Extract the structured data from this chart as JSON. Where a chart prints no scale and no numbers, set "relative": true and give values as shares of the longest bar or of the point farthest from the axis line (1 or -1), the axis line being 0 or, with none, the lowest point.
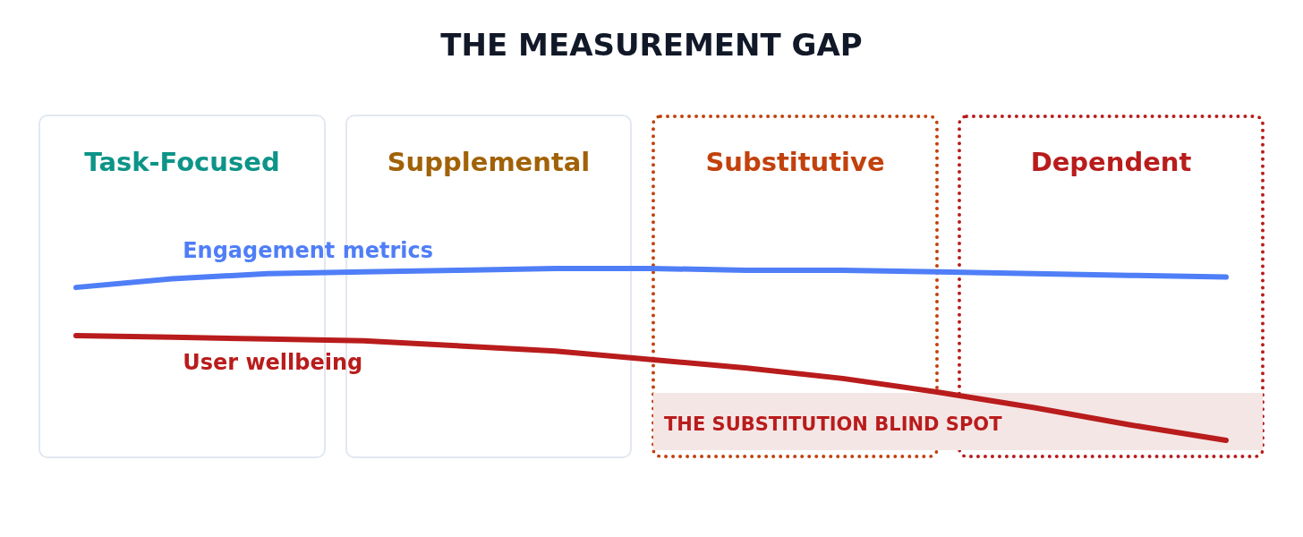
{
  "chart_data": {
    "type": "line",
    "title": "THE MEASUREMENT GAP",
    "relative": true,
    "categories": [
      null,
      null,
      null,
      null,
      null,
      null,
      null,
      null,
      null,
      null,
      null,
      null,
      null
    ],
    "series": [
      {
        "name": "Engagement metrics",
        "color": "#4f7ef7",
        "values": [
          0.89,
          0.94,
          0.97,
          0.98,
          0.99,
          1,
          1,
          0.99,
          0.99,
          0.98,
          0.97,
          0.96,
          0.95
        ]
      },
      {
        "name": "User wellbeing",
        "color": "#b91c1c",
        "values": [
          0.61,
          0.6,
          0.59,
          0.58,
          0.55,
          0.52,
          0.47,
          0.42,
          0.36,
          0.28,
          0.19,
          0.09,
          0
        ]
      }
    ],
    "annotations": [
      "Task-Focused",
      "Supplemental",
      "Substitutive",
      "Dependent",
      "THE SUBSTITUTION BLIND SPOT"
    ],
    "marker": "none",
    "line_style": "solid",
    "grid": false,
    "legend": false
  }
}
